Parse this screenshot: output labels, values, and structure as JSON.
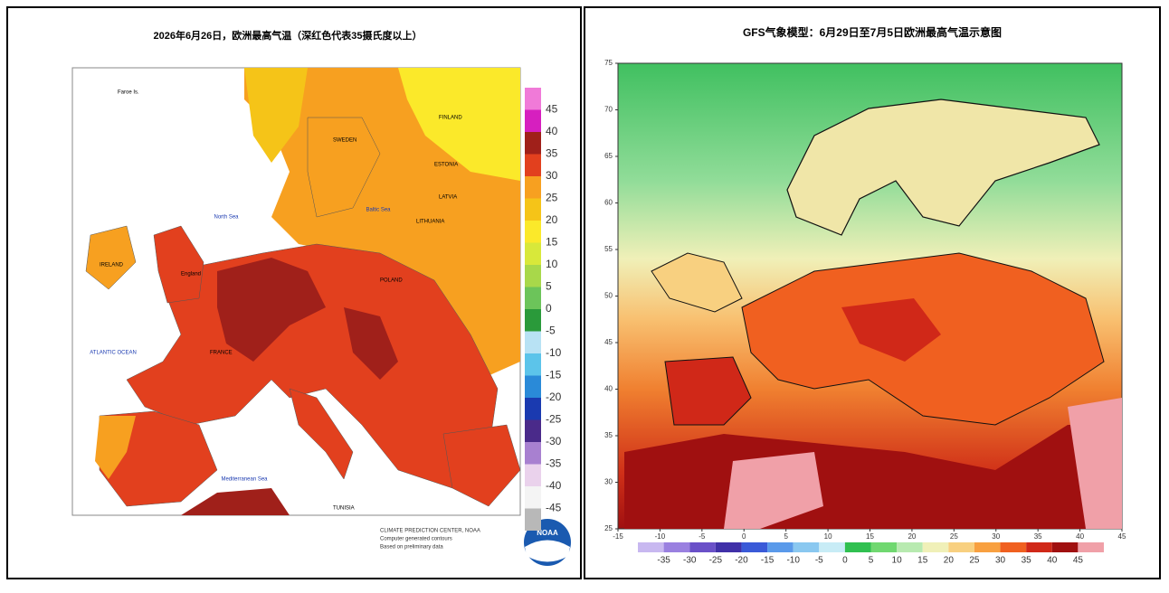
{
  "left_map": {
    "title": "2026年6月26日，欧洲最高气温（深红色代表35摄氏度以上）",
    "places": {
      "faroe": "Faroe Is.",
      "north_sea": "North Sea",
      "baltic_sea": "Baltic Sea",
      "atlantic": "ATLANTIC OCEAN",
      "mediterranean": "Mediterranean Sea",
      "finland": "FINLAND",
      "sweden": "SWEDEN",
      "estonia": "ESTONIA",
      "latvia": "LATVIA",
      "lithuania": "LITHUANIA",
      "poland": "POLAND",
      "ireland": "IRELAND",
      "england": "England",
      "france": "FRANCE",
      "tunisia": "TUNISIA"
    },
    "legend": {
      "labels": [
        45,
        40,
        35,
        30,
        25,
        20,
        15,
        10,
        5,
        0,
        -5,
        -10,
        -15,
        -20,
        -25,
        -30,
        -35,
        -40,
        -45
      ],
      "colors": [
        "#d61fbf",
        "#a0201a",
        "#e2401e",
        "#f7a020",
        "#f5c418",
        "#fbe92a",
        "#d8e83a",
        "#a8d84a",
        "#6cc45a",
        "#2a9a3a",
        "#b8e2f4",
        "#5cc4ea",
        "#2a8ad8",
        "#1a3ab0",
        "#4a2a8a",
        "#a880d0",
        "#ead2ec",
        "#f4f4f4",
        "#b8b8b8"
      ],
      "top_color": "#f07ad8"
    },
    "footer": [
      "CLIMATE PREDICTION CENTER, NOAA",
      "Computer generated contours",
      "Based on preliminary data"
    ],
    "logo": "NOAA"
  },
  "right_map": {
    "title": "GFS气象模型：6月29日至7月5日欧洲最高气温示意图",
    "latlim": [
      25,
      75
    ],
    "lat_ticks": [
      75,
      70,
      65,
      60,
      55,
      50,
      45,
      40,
      35,
      30,
      25
    ],
    "lonlim": [
      -15,
      45
    ],
    "lon_ticks": [
      -15,
      -10,
      -5,
      0,
      5,
      10,
      15,
      20,
      25,
      30,
      35,
      40,
      45
    ],
    "colorbar": {
      "labels": [
        -35,
        -30,
        -25,
        -20,
        -15,
        -10,
        -5,
        0,
        5,
        10,
        15,
        20,
        25,
        30,
        35,
        40,
        45
      ],
      "colors": [
        "#c8b8f0",
        "#9a80e0",
        "#6a50c8",
        "#4030a8",
        "#3a5ad8",
        "#5a9aea",
        "#8ac8f0",
        "#c8ecf6",
        "#30c050",
        "#70d870",
        "#b8eab0",
        "#f0f0b8",
        "#f8d080",
        "#f8a040",
        "#f06020",
        "#d02818",
        "#a01010",
        "#f0a0a8"
      ]
    }
  }
}
